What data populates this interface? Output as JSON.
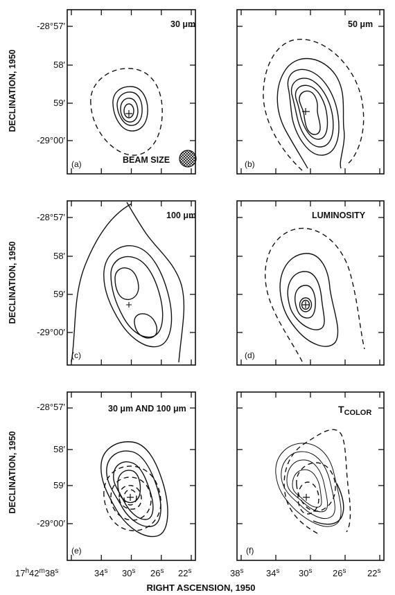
{
  "chart_data": [
    {
      "type": "contour",
      "panel": "(a)",
      "title": "30 μm",
      "annotation": "BEAM SIZE",
      "ylabel": "DECLINATION, 1950",
      "y_ticks": [
        "-28°57′",
        "58′",
        "59′",
        "-29°00′"
      ]
    },
    {
      "type": "contour",
      "panel": "(b)",
      "title": "50 μm"
    },
    {
      "type": "contour",
      "panel": "(c)",
      "title": "100 μm",
      "ylabel": "DECLINATION, 1950",
      "y_ticks": [
        "-28°57′",
        "58′",
        "59′",
        "-29°00′"
      ]
    },
    {
      "type": "contour",
      "panel": "(d)",
      "title": "LUMINOSITY"
    },
    {
      "type": "contour",
      "panel": "(e)",
      "title": "30 μm AND 100 μm",
      "ylabel": "DECLINATION, 1950",
      "y_ticks": [
        "-28°57′",
        "58′",
        "59′",
        "-29°00′"
      ],
      "x_ticks": [
        "17h42m38s",
        "34s",
        "30s",
        "26s",
        "22s"
      ]
    },
    {
      "type": "contour",
      "panel": "(f)",
      "title": "T",
      "title_sub": "COLOR",
      "x_ticks": [
        "38s",
        "34s",
        "30s",
        "26s",
        "22s"
      ]
    }
  ],
  "figure": {
    "ylabel": "DECLINATION, 1950",
    "xlabel": "RIGHT ASCENSION, 1950",
    "y_ticks": [
      "-28°57′",
      "58′",
      "59′",
      "-29°00′"
    ],
    "x_ticks_left": {
      "first_main": "17",
      "first_h": "h",
      "first_mid": "42",
      "first_m": "m",
      "first_sec": "38",
      "first_s": "s",
      "rest": [
        "34",
        "30",
        "26",
        "22"
      ],
      "sup": "s"
    },
    "x_ticks_right": {
      "labels": [
        "38",
        "34",
        "30",
        "26",
        "22"
      ],
      "sup": "s"
    }
  }
}
